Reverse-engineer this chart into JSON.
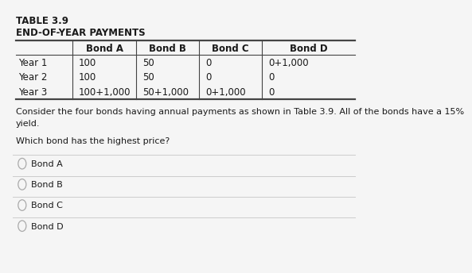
{
  "title_line1": "TABLE 3.9",
  "title_line2": "END-OF-YEAR PAYMENTS",
  "col_headers": [
    "Bond A",
    "Bond B",
    "Bond C",
    "Bond D"
  ],
  "row_headers": [
    "Year 1",
    "Year 2",
    "Year 3"
  ],
  "cell_data": [
    [
      "100",
      "50",
      "0",
      "0+1,000"
    ],
    [
      "100",
      "50",
      "0",
      "0"
    ],
    [
      "100+1,000",
      "50+1,000",
      "0+1,000",
      "0"
    ]
  ],
  "body_text1": "Consider the four bonds having annual payments as shown in Table 3.9. All of the bonds have a 15%",
  "body_text2": "yield.",
  "question_text": "Which bond has the highest price?",
  "options": [
    "Bond A",
    "Bond B",
    "Bond C",
    "Bond D"
  ],
  "bg_color": "#f5f5f5",
  "text_color": "#1a1a1a",
  "line_color": "#444444",
  "sep_line_color": "#aaaaaa",
  "option_line_color": "#cccccc",
  "title_fontsize": 8.5,
  "header_fontsize": 8.5,
  "cell_fontsize": 8.5,
  "body_fontsize": 8.0,
  "option_fontsize": 8.0,
  "fig_w": 5.72,
  "fig_h": 4.22
}
